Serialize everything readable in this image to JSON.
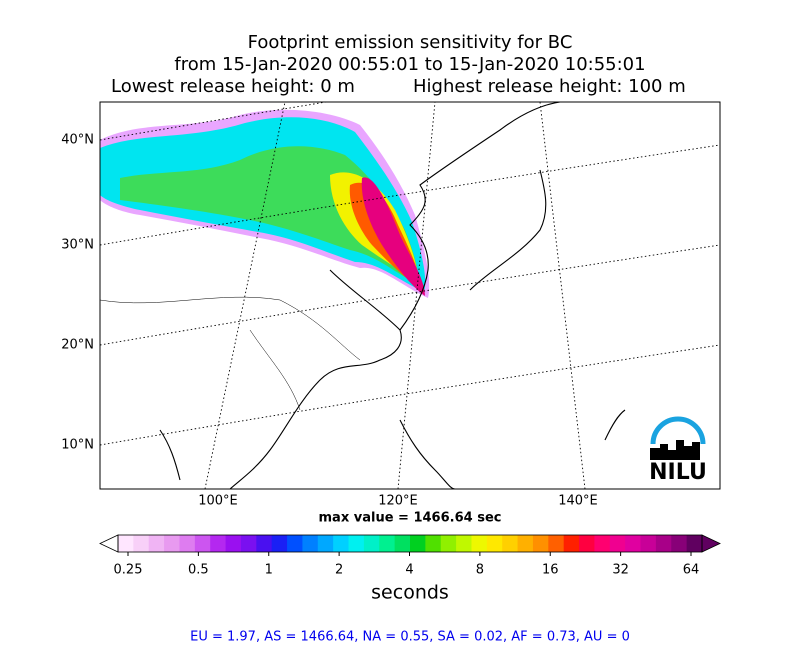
{
  "title": {
    "line1": "Footprint emission sensitivity for BC",
    "line2": "from 15-Jan-2020 00:55:01 to 15-Jan-2020 10:55:01",
    "lowest": "Lowest release height: 0 m",
    "highest": "Highest release height: 100 m"
  },
  "map": {
    "lat_labels": [
      "40°N",
      "30°N",
      "20°N",
      "10°N"
    ],
    "lon_labels": [
      "100°E",
      "120°E",
      "140°E"
    ],
    "logo": "NILU"
  },
  "max_value": "max value = 1466.64 sec",
  "colorbar": {
    "ticks": [
      "0.25",
      "0.5",
      "1",
      "2",
      "4",
      "8",
      "16",
      "32",
      "64"
    ],
    "label": "seconds",
    "colors": [
      "#ffe6ff",
      "#f8d0f8",
      "#f0b4f4",
      "#e89af0",
      "#de7cf0",
      "#cc55f0",
      "#b428f0",
      "#9a10f0",
      "#7a10f0",
      "#4a10f0",
      "#1a20f5",
      "#0050ff",
      "#0080ff",
      "#00a8ff",
      "#00d0ff",
      "#00f0f0",
      "#00f0c8",
      "#00f090",
      "#00e060",
      "#00d020",
      "#50e000",
      "#90f000",
      "#c0f800",
      "#eef800",
      "#ffe800",
      "#ffd000",
      "#ffb000",
      "#ff9000",
      "#ff6000",
      "#ff2000",
      "#ff0040",
      "#ff0070",
      "#f00090",
      "#e000a0",
      "#c80098",
      "#a80088",
      "#880078",
      "#600060"
    ]
  },
  "footer": "EU = 1.97,  AS = 1466.64,  NA = 0.55,  SA = 0.02,  AF = 0.73,  AU = 0"
}
